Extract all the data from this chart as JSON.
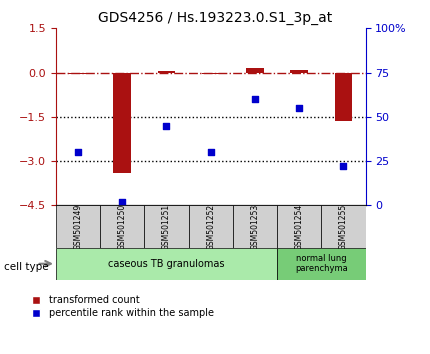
{
  "title": "GDS4256 / Hs.193223.0.S1_3p_at",
  "samples": [
    "GSM501249",
    "GSM501250",
    "GSM501251",
    "GSM501252",
    "GSM501253",
    "GSM501254",
    "GSM501255"
  ],
  "red_values": [
    -0.05,
    -3.4,
    0.05,
    -0.05,
    0.15,
    0.1,
    -1.65
  ],
  "blue_values_pct": [
    30,
    2,
    45,
    30,
    60,
    55,
    22
  ],
  "ylim_left": [
    -4.5,
    1.5
  ],
  "ylim_right": [
    0,
    100
  ],
  "left_ticks": [
    1.5,
    0,
    -1.5,
    -3,
    -4.5
  ],
  "right_ticks": [
    100,
    75,
    50,
    25,
    0
  ],
  "hlines_dotted": [
    -1.5,
    -3.0
  ],
  "hline_dashdot": 0,
  "bar_color": "#aa1111",
  "dot_color": "#0000cc",
  "dashdot_color": "#aa1111",
  "dotted_color": "#000000",
  "cell_type_groups": [
    {
      "label": "caseous TB granulomas",
      "samples": [
        0,
        1,
        2,
        3,
        4
      ],
      "color": "#ccffcc"
    },
    {
      "label": "normal lung\nparenchyma",
      "samples": [
        5,
        6
      ],
      "color": "#99ee99"
    }
  ],
  "legend_red": "transformed count",
  "legend_blue": "percentile rank within the sample",
  "cell_type_label": "cell type"
}
